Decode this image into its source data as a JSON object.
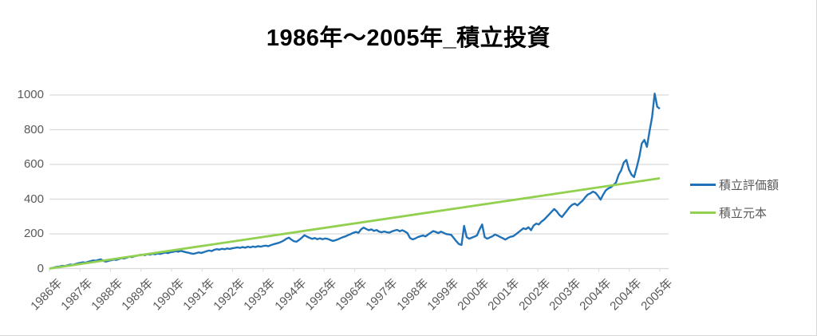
{
  "title": "1986年〜2005年_積立投資",
  "colors": {
    "valuation_line": "#1f72b8",
    "principal_line": "#92d050",
    "gridline": "#d9d9d9",
    "axis_text": "#595959",
    "title_text": "#000000"
  },
  "legend": {
    "items": [
      {
        "label": "積立評価額",
        "color": "#1f72b8"
      },
      {
        "label": "積立元本",
        "color": "#92d050"
      }
    ]
  },
  "chart_data": {
    "type": "line",
    "title": "1986年〜2005年_積立投資",
    "xlabel": "",
    "ylabel": "",
    "ylim": [
      0,
      1000
    ],
    "y_ticks": [
      0,
      200,
      400,
      600,
      800,
      1000
    ],
    "x_tick_labels": [
      "1986年",
      "1987年",
      "1988年",
      "1989年",
      "1990年",
      "1991年",
      "1992年",
      "1993年",
      "1994年",
      "1995年",
      "1996年",
      "1997年",
      "1998年",
      "1999年",
      "2000年",
      "2001年",
      "2002年",
      "2003年",
      "2004年",
      "2004年",
      "2005年"
    ],
    "grid": "horizontal-only",
    "legend_position": "right",
    "series": [
      {
        "name": "積立評価額",
        "color": "#1f72b8",
        "x_start_year": 1986.0,
        "x_step_years": 0.0833,
        "values": [
          0,
          3,
          7,
          10,
          12,
          16,
          14,
          19,
          23,
          21,
          26,
          30,
          33,
          36,
          34,
          39,
          43,
          47,
          45,
          50,
          53,
          44,
          40,
          45,
          48,
          52,
          50,
          55,
          60,
          58,
          63,
          68,
          66,
          71,
          74,
          78,
          80,
          77,
          83,
          80,
          85,
          82,
          87,
          84,
          89,
          92,
          89,
          94,
          96,
          100,
          97,
          102,
          98,
          94,
          91,
          87,
          85,
          89,
          93,
          90,
          95,
          100,
          104,
          101,
          108,
          112,
          109,
          114,
          111,
          116,
          113,
          117,
          119,
          122,
          119,
          124,
          120,
          126,
          122,
          127,
          124,
          129,
          126,
          130,
          132,
          129,
          135,
          140,
          144,
          148,
          154,
          162,
          172,
          178,
          166,
          157,
          155,
          166,
          178,
          192,
          184,
          177,
          171,
          176,
          169,
          174,
          169,
          173,
          171,
          165,
          159,
          163,
          168,
          175,
          181,
          186,
          193,
          199,
          206,
          211,
          206,
          226,
          236,
          228,
          221,
          226,
          217,
          222,
          213,
          209,
          214,
          209,
          207,
          214,
          219,
          223,
          215,
          221,
          214,
          204,
          176,
          168,
          173,
          181,
          186,
          191,
          185,
          196,
          206,
          216,
          211,
          204,
          213,
          206,
          199,
          197,
          194,
          176,
          157,
          141,
          136,
          246,
          181,
          172,
          178,
          184,
          191,
          225,
          254,
          181,
          172,
          179,
          186,
          196,
          190,
          182,
          175,
          167,
          176,
          183,
          186,
          196,
          208,
          220,
          232,
          227,
          238,
          221,
          248,
          259,
          254,
          270,
          281,
          296,
          312,
          328,
          343,
          329,
          309,
          297,
          316,
          335,
          354,
          368,
          374,
          364,
          378,
          391,
          410,
          426,
          433,
          443,
          437,
          419,
          397,
          426,
          450,
          462,
          468,
          481,
          496,
          540,
          566,
          611,
          626,
          571,
          541,
          527,
          581,
          641,
          721,
          741,
          701,
          791,
          873,
          1008,
          932,
          921
        ]
      },
      {
        "name": "積立元本",
        "color": "#92d050",
        "shape": "straight-line",
        "start_value": 0,
        "end_value": 520
      }
    ]
  }
}
